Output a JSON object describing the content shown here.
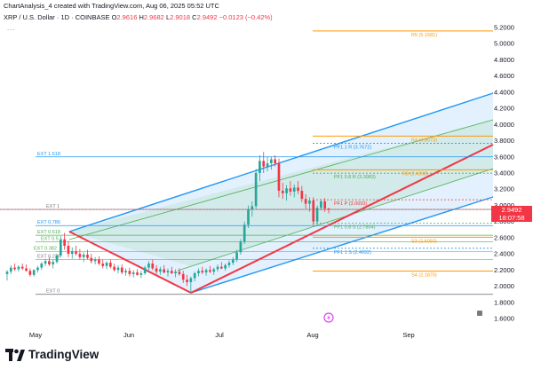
{
  "header": {
    "credit": "ChartAnalysis_4 created with TradingView.com, Aug 06, 2025 05:52 UTC",
    "symbol": "XRP / U.S. Dollar · 1D · COINBASE",
    "o_label": "O",
    "o_value": "2.9616",
    "h_label": "H",
    "h_value": "2.9682",
    "l_label": "L",
    "l_value": "2.9018",
    "c_label": "C",
    "c_value": "2.9492",
    "change": "−0.0123 (−0.42%)",
    "menu_dots": "..."
  },
  "price_tag": {
    "price": "2.9492",
    "countdown": "18:07:58"
  },
  "brand": {
    "name": "TradingView"
  },
  "colors": {
    "red": "#f23645",
    "blue": "#2962ff",
    "channel_blue": "#2196f3",
    "green": "#4caf50",
    "orange": "#ff9800",
    "grey": "#787b86",
    "up": "#26a69a"
  },
  "chart_data": {
    "type": "candlestick",
    "symbol": "XRP / U.S. Dollar",
    "exchange": "COINBASE",
    "interval": "1D",
    "y_ticks": [
      "5.2000",
      "5.0000",
      "4.8000",
      "4.6000",
      "4.4000",
      "4.2000",
      "4.0000",
      "3.8000",
      "3.6000",
      "3.4000",
      "3.2000",
      "3.0000",
      "2.8000",
      "2.6000",
      "2.4000",
      "2.2000",
      "2.0000",
      "1.8000",
      "1.6000"
    ],
    "x_ticks": [
      "May",
      "Jun",
      "Jul",
      "Aug",
      "Sep"
    ],
    "last_price": 2.9492,
    "fib_extension_labels": [
      "EXT 1.618",
      "EXT 1",
      "EXT 0.786",
      "EXT 0.618",
      "EXT 0.5",
      "EXT 0.382",
      "EXT 0.236",
      "EXT 0"
    ],
    "pivot_labels": [
      {
        "text": "R5 (5.1581)",
        "value": 5.1581
      },
      {
        "text": "R4 (3.8573)",
        "value": 3.8573
      },
      {
        "text": "PF1.1 R (3.7672)",
        "value": 3.7672
      },
      {
        "text": "PF1 0.8 R (3.3983)",
        "value": 3.3983
      },
      {
        "text": "R3 (3.4398)",
        "value": 3.4398
      },
      {
        "text": "PF1 P (3.0693)",
        "value": 3.0693
      },
      {
        "text": "PF1 0.8 S (2.7804)",
        "value": 2.7804
      },
      {
        "text": "S3 (2.6050)",
        "value": 2.605
      },
      {
        "text": "PF1 1 S (2.4692)",
        "value": 2.4692
      },
      {
        "text": "S4 (2.1875)",
        "value": 2.1875
      }
    ],
    "candles": [
      {
        "o": 2.15,
        "h": 2.2,
        "l": 2.07,
        "c": 2.18
      },
      {
        "o": 2.18,
        "h": 2.26,
        "l": 2.15,
        "c": 2.23
      },
      {
        "o": 2.23,
        "h": 2.28,
        "l": 2.19,
        "c": 2.21
      },
      {
        "o": 2.21,
        "h": 2.26,
        "l": 2.18,
        "c": 2.24
      },
      {
        "o": 2.24,
        "h": 2.28,
        "l": 2.2,
        "c": 2.22
      },
      {
        "o": 2.22,
        "h": 2.27,
        "l": 2.18,
        "c": 2.19
      },
      {
        "o": 2.19,
        "h": 2.22,
        "l": 2.12,
        "c": 2.14
      },
      {
        "o": 2.14,
        "h": 2.21,
        "l": 2.12,
        "c": 2.2
      },
      {
        "o": 2.2,
        "h": 2.25,
        "l": 2.17,
        "c": 2.23
      },
      {
        "o": 2.23,
        "h": 2.3,
        "l": 2.2,
        "c": 2.28
      },
      {
        "o": 2.28,
        "h": 2.34,
        "l": 2.25,
        "c": 2.31
      },
      {
        "o": 2.31,
        "h": 2.36,
        "l": 2.25,
        "c": 2.27
      },
      {
        "o": 2.27,
        "h": 2.33,
        "l": 2.22,
        "c": 2.3
      },
      {
        "o": 2.3,
        "h": 2.4,
        "l": 2.28,
        "c": 2.38
      },
      {
        "o": 2.38,
        "h": 2.62,
        "l": 2.36,
        "c": 2.58
      },
      {
        "o": 2.58,
        "h": 2.66,
        "l": 2.45,
        "c": 2.5
      },
      {
        "o": 2.5,
        "h": 2.56,
        "l": 2.36,
        "c": 2.4
      },
      {
        "o": 2.4,
        "h": 2.48,
        "l": 2.34,
        "c": 2.43
      },
      {
        "o": 2.43,
        "h": 2.5,
        "l": 2.38,
        "c": 2.4
      },
      {
        "o": 2.4,
        "h": 2.46,
        "l": 2.33,
        "c": 2.36
      },
      {
        "o": 2.36,
        "h": 2.42,
        "l": 2.3,
        "c": 2.39
      },
      {
        "o": 2.39,
        "h": 2.45,
        "l": 2.33,
        "c": 2.35
      },
      {
        "o": 2.35,
        "h": 2.4,
        "l": 2.28,
        "c": 2.31
      },
      {
        "o": 2.31,
        "h": 2.36,
        "l": 2.27,
        "c": 2.33
      },
      {
        "o": 2.33,
        "h": 2.37,
        "l": 2.26,
        "c": 2.28
      },
      {
        "o": 2.28,
        "h": 2.33,
        "l": 2.22,
        "c": 2.25
      },
      {
        "o": 2.25,
        "h": 2.31,
        "l": 2.21,
        "c": 2.29
      },
      {
        "o": 2.29,
        "h": 2.33,
        "l": 2.22,
        "c": 2.24
      },
      {
        "o": 2.24,
        "h": 2.28,
        "l": 2.18,
        "c": 2.2
      },
      {
        "o": 2.2,
        "h": 2.26,
        "l": 2.16,
        "c": 2.23
      },
      {
        "o": 2.23,
        "h": 2.27,
        "l": 2.15,
        "c": 2.17
      },
      {
        "o": 2.17,
        "h": 2.22,
        "l": 2.13,
        "c": 2.19
      },
      {
        "o": 2.19,
        "h": 2.23,
        "l": 2.12,
        "c": 2.15
      },
      {
        "o": 2.15,
        "h": 2.2,
        "l": 2.11,
        "c": 2.17
      },
      {
        "o": 2.17,
        "h": 2.21,
        "l": 2.13,
        "c": 2.14
      },
      {
        "o": 2.14,
        "h": 2.19,
        "l": 2.1,
        "c": 2.16
      },
      {
        "o": 2.16,
        "h": 2.25,
        "l": 2.14,
        "c": 2.23
      },
      {
        "o": 2.23,
        "h": 2.31,
        "l": 2.2,
        "c": 2.28
      },
      {
        "o": 2.28,
        "h": 2.33,
        "l": 2.2,
        "c": 2.22
      },
      {
        "o": 2.22,
        "h": 2.26,
        "l": 2.15,
        "c": 2.18
      },
      {
        "o": 2.18,
        "h": 2.24,
        "l": 2.14,
        "c": 2.21
      },
      {
        "o": 2.21,
        "h": 2.26,
        "l": 2.16,
        "c": 2.17
      },
      {
        "o": 2.17,
        "h": 2.22,
        "l": 2.12,
        "c": 2.19
      },
      {
        "o": 2.19,
        "h": 2.24,
        "l": 2.15,
        "c": 2.16
      },
      {
        "o": 2.16,
        "h": 2.21,
        "l": 2.11,
        "c": 2.18
      },
      {
        "o": 2.18,
        "h": 2.22,
        "l": 2.13,
        "c": 2.15
      },
      {
        "o": 2.15,
        "h": 2.19,
        "l": 2.04,
        "c": 2.08
      },
      {
        "o": 2.08,
        "h": 2.14,
        "l": 2.0,
        "c": 2.05
      },
      {
        "o": 2.05,
        "h": 2.12,
        "l": 1.92,
        "c": 2.1
      },
      {
        "o": 2.1,
        "h": 2.18,
        "l": 2.06,
        "c": 2.16
      },
      {
        "o": 2.16,
        "h": 2.22,
        "l": 2.12,
        "c": 2.19
      },
      {
        "o": 2.19,
        "h": 2.24,
        "l": 2.15,
        "c": 2.17
      },
      {
        "o": 2.17,
        "h": 2.22,
        "l": 2.13,
        "c": 2.2
      },
      {
        "o": 2.2,
        "h": 2.25,
        "l": 2.16,
        "c": 2.18
      },
      {
        "o": 2.18,
        "h": 2.23,
        "l": 2.14,
        "c": 2.21
      },
      {
        "o": 2.21,
        "h": 2.27,
        "l": 2.18,
        "c": 2.24
      },
      {
        "o": 2.24,
        "h": 2.3,
        "l": 2.21,
        "c": 2.22
      },
      {
        "o": 2.22,
        "h": 2.28,
        "l": 2.19,
        "c": 2.26
      },
      {
        "o": 2.26,
        "h": 2.32,
        "l": 2.23,
        "c": 2.29
      },
      {
        "o": 2.29,
        "h": 2.36,
        "l": 2.26,
        "c": 2.33
      },
      {
        "o": 2.33,
        "h": 2.45,
        "l": 2.3,
        "c": 2.42
      },
      {
        "o": 2.42,
        "h": 2.58,
        "l": 2.39,
        "c": 2.55
      },
      {
        "o": 2.55,
        "h": 2.8,
        "l": 2.52,
        "c": 2.76
      },
      {
        "o": 2.76,
        "h": 3.0,
        "l": 2.72,
        "c": 2.95
      },
      {
        "o": 2.95,
        "h": 3.05,
        "l": 2.86,
        "c": 2.99
      },
      {
        "o": 2.99,
        "h": 3.45,
        "l": 2.96,
        "c": 3.4
      },
      {
        "o": 3.4,
        "h": 3.62,
        "l": 3.3,
        "c": 3.55
      },
      {
        "o": 3.55,
        "h": 3.66,
        "l": 3.4,
        "c": 3.48
      },
      {
        "o": 3.48,
        "h": 3.6,
        "l": 3.42,
        "c": 3.52
      },
      {
        "o": 3.52,
        "h": 3.6,
        "l": 3.44,
        "c": 3.57
      },
      {
        "o": 3.57,
        "h": 3.62,
        "l": 3.48,
        "c": 3.52
      },
      {
        "o": 3.52,
        "h": 3.58,
        "l": 3.1,
        "c": 3.18
      },
      {
        "o": 3.18,
        "h": 3.28,
        "l": 3.08,
        "c": 3.15
      },
      {
        "o": 3.15,
        "h": 3.25,
        "l": 3.06,
        "c": 3.21
      },
      {
        "o": 3.21,
        "h": 3.3,
        "l": 3.12,
        "c": 3.17
      },
      {
        "o": 3.17,
        "h": 3.26,
        "l": 3.1,
        "c": 3.22
      },
      {
        "o": 3.22,
        "h": 3.3,
        "l": 3.14,
        "c": 3.18
      },
      {
        "o": 3.18,
        "h": 3.24,
        "l": 3.04,
        "c": 3.08
      },
      {
        "o": 3.08,
        "h": 3.14,
        "l": 2.96,
        "c": 3.02
      },
      {
        "o": 3.02,
        "h": 3.1,
        "l": 2.92,
        "c": 3.06
      },
      {
        "o": 3.06,
        "h": 3.1,
        "l": 2.75,
        "c": 2.8
      },
      {
        "o": 2.8,
        "h": 3.0,
        "l": 2.74,
        "c": 2.97
      },
      {
        "o": 2.97,
        "h": 3.08,
        "l": 2.94,
        "c": 3.05
      },
      {
        "o": 3.05,
        "h": 3.09,
        "l": 2.92,
        "c": 2.96
      },
      {
        "o": 2.96,
        "h": 2.97,
        "l": 2.9,
        "c": 2.9492
      }
    ]
  }
}
